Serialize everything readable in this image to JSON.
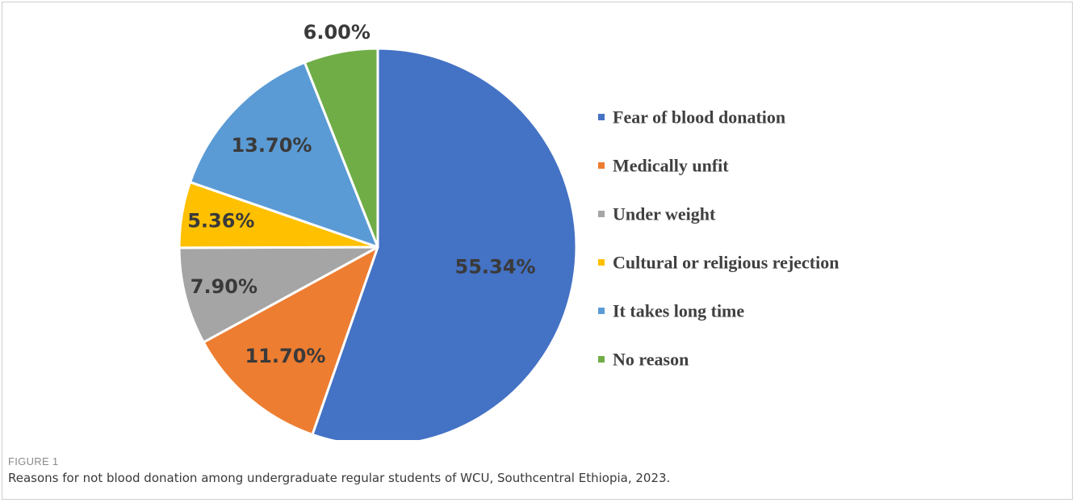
{
  "figure": {
    "label": "FIGURE 1",
    "caption": "Reasons for not blood donation among undergraduate regular students of WCU, Southcentral Ethiopia, 2023."
  },
  "chart_data": {
    "type": "pie",
    "title": "",
    "legend_position": "right",
    "slices": [
      {
        "name": "Fear of blood donation",
        "value": 55.34,
        "label": "55.34%",
        "color": "#4472C4"
      },
      {
        "name": "Medically unfit",
        "value": 11.7,
        "label": "11.70%",
        "color": "#ED7D31"
      },
      {
        "name": "Under weight",
        "value": 7.9,
        "label": "7.90%",
        "color": "#A5A5A5"
      },
      {
        "name": "Cultural or religious rejection",
        "value": 5.36,
        "label": "5.36%",
        "color": "#FFC000"
      },
      {
        "name": "It takes long time",
        "value": 13.7,
        "label": "13.70%",
        "color": "#5B9BD5"
      },
      {
        "name": "No reason",
        "value": 6.0,
        "label": "6.00%",
        "color": "#70AD47"
      }
    ]
  }
}
